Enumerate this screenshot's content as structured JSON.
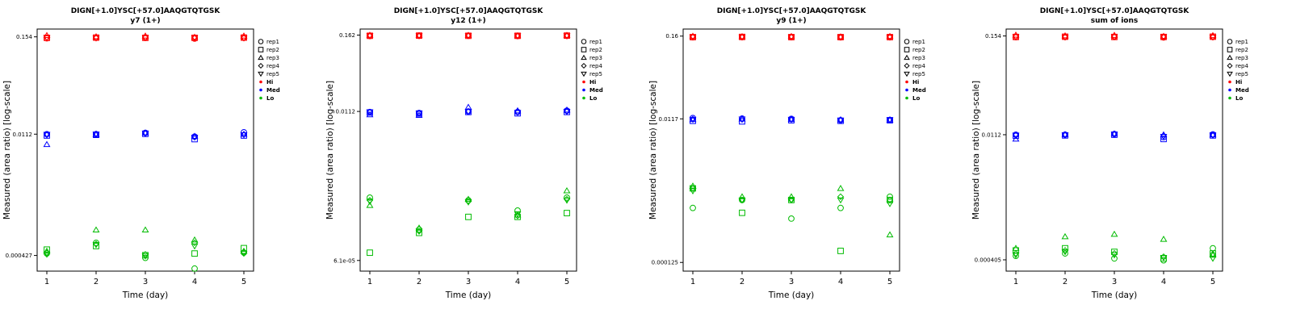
{
  "page": {
    "background": "#ffffff"
  },
  "shared": {
    "title": "DIGN[+1.0]YSC[+57.0]AAQGTQTGSK",
    "xlabel": "Time (day)",
    "ylabel": "Measured (area ratio) [log-scale]",
    "legend": {
      "rep_entries": [
        {
          "label": "rep1",
          "shape": "circle"
        },
        {
          "label": "rep2",
          "shape": "square"
        },
        {
          "label": "rep3",
          "shape": "triangle-up"
        },
        {
          "label": "rep4",
          "shape": "diamond"
        },
        {
          "label": "rep5",
          "shape": "triangle-down"
        }
      ],
      "level_entries": [
        {
          "label": "Hi",
          "color": "#ff0000"
        },
        {
          "label": "Med",
          "color": "#0000ff"
        },
        {
          "label": "Lo",
          "color": "#00bb00"
        }
      ]
    }
  },
  "chart_data": [
    {
      "type": "scatter",
      "title": "DIGN[+1.0]YSC[+57.0]AAQGTQTGSK",
      "subtitle": "y7 (1+)",
      "xlabel": "Time (day)",
      "ylabel": "Measured (area ratio) [log-scale]",
      "x": [
        1,
        2,
        3,
        4,
        5
      ],
      "xtick_labels": [
        "1",
        "2",
        "3",
        "4",
        "5"
      ],
      "ylim_log": [
        0.00028,
        0.19
      ],
      "yticks": [
        {
          "value": 0.154,
          "label": "0.154"
        },
        {
          "value": 0.0112,
          "label": "0.0112"
        },
        {
          "value": 0.000427,
          "label": "0.000427"
        }
      ],
      "levels": [
        {
          "name": "Hi",
          "color": "#ff0000",
          "reps": [
            [
              0.148,
              0.15,
              0.151,
              0.147,
              0.15
            ],
            [
              0.15,
              0.151,
              0.15,
              0.15,
              0.151
            ],
            [
              0.16,
              0.155,
              0.158,
              0.153,
              0.158
            ],
            [
              0.151,
              0.15,
              0.151,
              0.149,
              0.15
            ],
            [
              0.15,
              0.149,
              0.15,
              0.15,
              0.149
            ]
          ]
        },
        {
          "name": "Med",
          "color": "#0000ff",
          "reps": [
            [
              0.0112,
              0.0112,
              0.0116,
              0.0105,
              0.0118
            ],
            [
              0.0108,
              0.011,
              0.0113,
              0.0098,
              0.0108
            ],
            [
              0.0085,
              0.0111,
              0.0116,
              0.0106,
              0.0112
            ],
            [
              0.011,
              0.0113,
              0.0114,
              0.0104,
              0.0111
            ],
            [
              0.0111,
              0.0112,
              0.0115,
              0.0103,
              0.011
            ]
          ]
        },
        {
          "name": "Lo",
          "color": "#00bb00",
          "reps": [
            [
              0.00045,
              0.0006,
              0.0004,
              0.0003,
              0.00046
            ],
            [
              0.0005,
              0.00055,
              0.00043,
              0.00045,
              0.00052
            ],
            [
              0.00048,
              0.00085,
              0.00085,
              0.00065,
              0.00048
            ],
            [
              0.00046,
              0.00058,
              0.00044,
              0.0006,
              0.00047
            ],
            [
              0.00044,
              0.00057,
              0.00042,
              0.00055,
              0.00045
            ]
          ]
        }
      ]
    },
    {
      "type": "scatter",
      "title": "DIGN[+1.0]YSC[+57.0]AAQGTQTGSK",
      "subtitle": "y12 (1+)",
      "xlabel": "Time (day)",
      "ylabel": "Measured (area ratio) [log-scale]",
      "x": [
        1,
        2,
        3,
        4,
        5
      ],
      "xtick_labels": [
        "1",
        "2",
        "3",
        "4",
        "5"
      ],
      "ylim_log": [
        4.2e-05,
        0.2
      ],
      "yticks": [
        {
          "value": 0.162,
          "label": "0.162"
        },
        {
          "value": 0.0112,
          "label": "0.0112"
        },
        {
          "value": 6.1e-05,
          "label": "6.1e-05"
        }
      ],
      "levels": [
        {
          "name": "Hi",
          "color": "#ff0000",
          "reps": [
            [
              0.157,
              0.158,
              0.159,
              0.157,
              0.158
            ],
            [
              0.158,
              0.159,
              0.158,
              0.158,
              0.159
            ],
            [
              0.162,
              0.16,
              0.161,
              0.159,
              0.161
            ],
            [
              0.158,
              0.158,
              0.159,
              0.158,
              0.158
            ],
            [
              0.157,
              0.158,
              0.158,
              0.157,
              0.157
            ]
          ]
        },
        {
          "name": "Med",
          "color": "#0000ff",
          "reps": [
            [
              0.011,
              0.0106,
              0.0112,
              0.011,
              0.0115
            ],
            [
              0.0108,
              0.0104,
              0.011,
              0.0105,
              0.011
            ],
            [
              0.01,
              0.0098,
              0.013,
              0.0115,
              0.0118
            ],
            [
              0.0109,
              0.0105,
              0.0112,
              0.0109,
              0.0112
            ],
            [
              0.011,
              0.0105,
              0.0111,
              0.0108,
              0.0112
            ]
          ]
        },
        {
          "name": "Lo",
          "color": "#00bb00",
          "reps": [
            [
              0.00055,
              0.00018,
              0.0005,
              0.00035,
              0.00055
            ],
            [
              8e-05,
              0.00016,
              0.00028,
              0.00028,
              0.00032
            ],
            [
              0.00042,
              0.00019,
              0.00052,
              0.0003,
              0.0007
            ],
            [
              0.0005,
              0.00017,
              0.00048,
              0.00029,
              0.00052
            ],
            [
              0.00048,
              0.00017,
              0.00047,
              0.00031,
              0.0005
            ]
          ]
        }
      ]
    },
    {
      "type": "scatter",
      "title": "DIGN[+1.0]YSC[+57.0]AAQGTQTGSK",
      "subtitle": "y9 (1+)",
      "xlabel": "Time (day)",
      "ylabel": "Measured (area ratio) [log-scale]",
      "x": [
        1,
        2,
        3,
        4,
        5
      ],
      "xtick_labels": [
        "1",
        "2",
        "3",
        "4",
        "5"
      ],
      "ylim_log": [
        9.5e-05,
        0.2
      ],
      "yticks": [
        {
          "value": 0.16,
          "label": "0.16"
        },
        {
          "value": 0.0117,
          "label": "0.0117"
        },
        {
          "value": 0.000125,
          "label": "0.000125"
        }
      ],
      "levels": [
        {
          "name": "Hi",
          "color": "#ff0000",
          "reps": [
            [
              0.154,
              0.155,
              0.155,
              0.154,
              0.156
            ],
            [
              0.155,
              0.156,
              0.155,
              0.155,
              0.155
            ],
            [
              0.16,
              0.158,
              0.159,
              0.157,
              0.159
            ],
            [
              0.156,
              0.155,
              0.156,
              0.155,
              0.155
            ],
            [
              0.155,
              0.155,
              0.155,
              0.154,
              0.154
            ]
          ]
        },
        {
          "name": "Med",
          "color": "#0000ff",
          "reps": [
            [
              0.012,
              0.0118,
              0.0117,
              0.0112,
              0.0113
            ],
            [
              0.011,
              0.0108,
              0.0112,
              0.011,
              0.0112
            ],
            [
              0.0115,
              0.0117,
              0.0115,
              0.0114,
              0.0113
            ],
            [
              0.0116,
              0.0115,
              0.0116,
              0.0113,
              0.0114
            ],
            [
              0.0115,
              0.0116,
              0.0115,
              0.0112,
              0.0113
            ]
          ]
        },
        {
          "name": "Lo",
          "color": "#00bb00",
          "reps": [
            [
              0.0007,
              0.0009,
              0.0005,
              0.0007,
              0.001
            ],
            [
              0.0013,
              0.0006,
              0.0009,
              0.00018,
              0.0009
            ],
            [
              0.0014,
              0.001,
              0.001,
              0.0013,
              0.0003
            ],
            [
              0.0013,
              0.0009,
              0.0009,
              0.001,
              0.0009
            ],
            [
              0.0012,
              0.0009,
              0.0009,
              0.0009,
              0.0008
            ]
          ]
        }
      ]
    },
    {
      "type": "scatter",
      "title": "DIGN[+1.0]YSC[+57.0]AAQGTQTGSK",
      "subtitle": "sum of ions",
      "xlabel": "Time (day)",
      "ylabel": "Measured (area ratio) [log-scale]",
      "x": [
        1,
        2,
        3,
        4,
        5
      ],
      "xtick_labels": [
        "1",
        "2",
        "3",
        "4",
        "5"
      ],
      "ylim_log": [
        0.0003,
        0.185
      ],
      "yticks": [
        {
          "value": 0.154,
          "label": "0.154"
        },
        {
          "value": 0.0112,
          "label": "0.0112"
        },
        {
          "value": 0.000405,
          "label": "0.000405"
        }
      ],
      "levels": [
        {
          "name": "Hi",
          "color": "#ff0000",
          "reps": [
            [
              0.149,
              0.15,
              0.151,
              0.148,
              0.15
            ],
            [
              0.15,
              0.151,
              0.15,
              0.15,
              0.151
            ],
            [
              0.158,
              0.155,
              0.157,
              0.153,
              0.156
            ],
            [
              0.151,
              0.15,
              0.151,
              0.149,
              0.15
            ],
            [
              0.15,
              0.149,
              0.15,
              0.15,
              0.149
            ]
          ]
        },
        {
          "name": "Med",
          "color": "#0000ff",
          "reps": [
            [
              0.0112,
              0.0112,
              0.0114,
              0.0105,
              0.0113
            ],
            [
              0.0109,
              0.011,
              0.0112,
              0.01,
              0.011
            ],
            [
              0.01,
              0.0113,
              0.0115,
              0.0112,
              0.0112
            ],
            [
              0.0111,
              0.0112,
              0.0113,
              0.0108,
              0.0111
            ],
            [
              0.011,
              0.0111,
              0.0114,
              0.0107,
              0.011
            ]
          ]
        },
        {
          "name": "Lo",
          "color": "#00bb00",
          "reps": [
            [
              0.00045,
              0.00048,
              0.00042,
              0.0004,
              0.00055
            ],
            [
              0.00052,
              0.00055,
              0.0005,
              0.00042,
              0.00048
            ],
            [
              0.00055,
              0.00075,
              0.0008,
              0.0007,
              0.00046
            ],
            [
              0.00048,
              0.00052,
              0.00048,
              0.00044,
              0.00047
            ],
            [
              0.00046,
              0.0005,
              0.00046,
              0.00043,
              0.00042
            ]
          ]
        }
      ]
    }
  ]
}
